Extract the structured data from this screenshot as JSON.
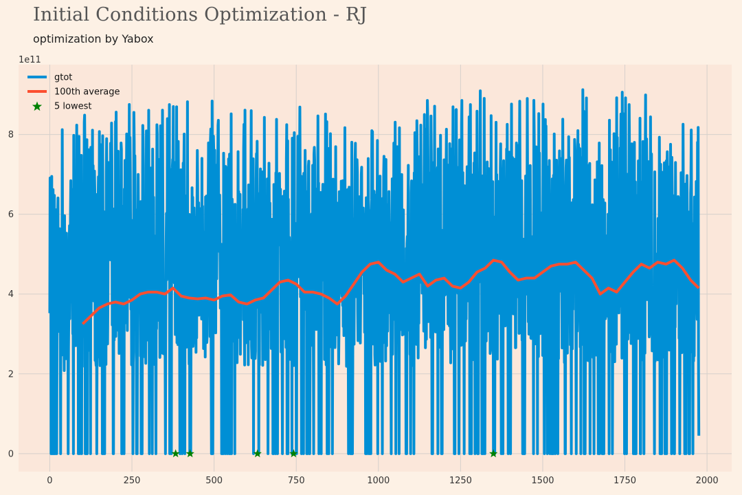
{
  "header": {
    "title": "Initial Conditions Optimization - RJ",
    "subtitle": "optimization by Yabox"
  },
  "chart_data": {
    "type": "line",
    "title": "Initial Conditions Optimization - RJ",
    "subtitle": "optimization by Yabox",
    "xlabel": "",
    "ylabel": "",
    "y_offset_label": "1e11",
    "xlim": [
      -95,
      2075
    ],
    "ylim": [
      -0.45,
      9.75
    ],
    "y_scale_exponent": 11,
    "x_ticks": [
      0,
      250,
      500,
      750,
      1000,
      1250,
      1500,
      1750,
      2000
    ],
    "y_ticks": [
      0,
      2,
      4,
      6,
      8
    ],
    "grid": true,
    "legend_position": "top-left",
    "colors": {
      "background": "#fdf1e5",
      "plot_area": "#fbe7da",
      "grid": "#d6d0cb",
      "gtot": "#008fd5",
      "average": "#fc4f30",
      "lowest": "#008000"
    },
    "series": [
      {
        "name": "gtot",
        "type": "line",
        "x_range": [
          0,
          1975
        ],
        "band_min": [
          [
            0,
            0.0
          ],
          [
            1975,
            0.0
          ]
        ],
        "band_max": [
          [
            0,
            8.2
          ],
          [
            250,
            8.9
          ],
          [
            500,
            9.0
          ],
          [
            750,
            8.7
          ],
          [
            1000,
            8.6
          ],
          [
            1250,
            9.1
          ],
          [
            1500,
            9.1
          ],
          [
            1750,
            9.2
          ],
          [
            1975,
            8.5
          ]
        ],
        "end_value": 0.45
      },
      {
        "name": "100th average",
        "type": "line",
        "points": [
          [
            100,
            3.25
          ],
          [
            125,
            3.45
          ],
          [
            150,
            3.65
          ],
          [
            175,
            3.75
          ],
          [
            200,
            3.8
          ],
          [
            225,
            3.75
          ],
          [
            250,
            3.85
          ],
          [
            275,
            4.0
          ],
          [
            300,
            4.05
          ],
          [
            325,
            4.05
          ],
          [
            350,
            4.0
          ],
          [
            375,
            4.15
          ],
          [
            400,
            3.95
          ],
          [
            425,
            3.9
          ],
          [
            450,
            3.88
          ],
          [
            475,
            3.9
          ],
          [
            500,
            3.85
          ],
          [
            525,
            3.95
          ],
          [
            550,
            3.98
          ],
          [
            575,
            3.8
          ],
          [
            600,
            3.75
          ],
          [
            625,
            3.85
          ],
          [
            650,
            3.9
          ],
          [
            675,
            4.1
          ],
          [
            700,
            4.3
          ],
          [
            725,
            4.35
          ],
          [
            750,
            4.25
          ],
          [
            775,
            4.05
          ],
          [
            800,
            4.05
          ],
          [
            825,
            4.0
          ],
          [
            850,
            3.9
          ],
          [
            875,
            3.75
          ],
          [
            900,
            3.95
          ],
          [
            925,
            4.25
          ],
          [
            950,
            4.55
          ],
          [
            975,
            4.75
          ],
          [
            1000,
            4.8
          ],
          [
            1025,
            4.6
          ],
          [
            1050,
            4.5
          ],
          [
            1075,
            4.3
          ],
          [
            1100,
            4.4
          ],
          [
            1125,
            4.5
          ],
          [
            1150,
            4.2
          ],
          [
            1175,
            4.35
          ],
          [
            1200,
            4.4
          ],
          [
            1225,
            4.2
          ],
          [
            1250,
            4.15
          ],
          [
            1275,
            4.3
          ],
          [
            1300,
            4.55
          ],
          [
            1325,
            4.65
          ],
          [
            1350,
            4.85
          ],
          [
            1375,
            4.8
          ],
          [
            1400,
            4.55
          ],
          [
            1425,
            4.35
          ],
          [
            1450,
            4.4
          ],
          [
            1475,
            4.4
          ],
          [
            1500,
            4.55
          ],
          [
            1525,
            4.7
          ],
          [
            1550,
            4.75
          ],
          [
            1575,
            4.75
          ],
          [
            1600,
            4.8
          ],
          [
            1625,
            4.6
          ],
          [
            1650,
            4.4
          ],
          [
            1675,
            4.0
          ],
          [
            1700,
            4.15
          ],
          [
            1725,
            4.05
          ],
          [
            1750,
            4.3
          ],
          [
            1775,
            4.55
          ],
          [
            1800,
            4.75
          ],
          [
            1825,
            4.65
          ],
          [
            1850,
            4.8
          ],
          [
            1875,
            4.75
          ],
          [
            1900,
            4.85
          ],
          [
            1925,
            4.65
          ],
          [
            1950,
            4.35
          ],
          [
            1975,
            4.15
          ]
        ]
      },
      {
        "name": "5 lowest",
        "type": "scatter",
        "marker": "star",
        "points": [
          [
            383,
            0.0
          ],
          [
            427,
            0.0
          ],
          [
            632,
            0.0
          ],
          [
            742,
            0.0
          ],
          [
            1350,
            0.0
          ]
        ]
      }
    ]
  }
}
